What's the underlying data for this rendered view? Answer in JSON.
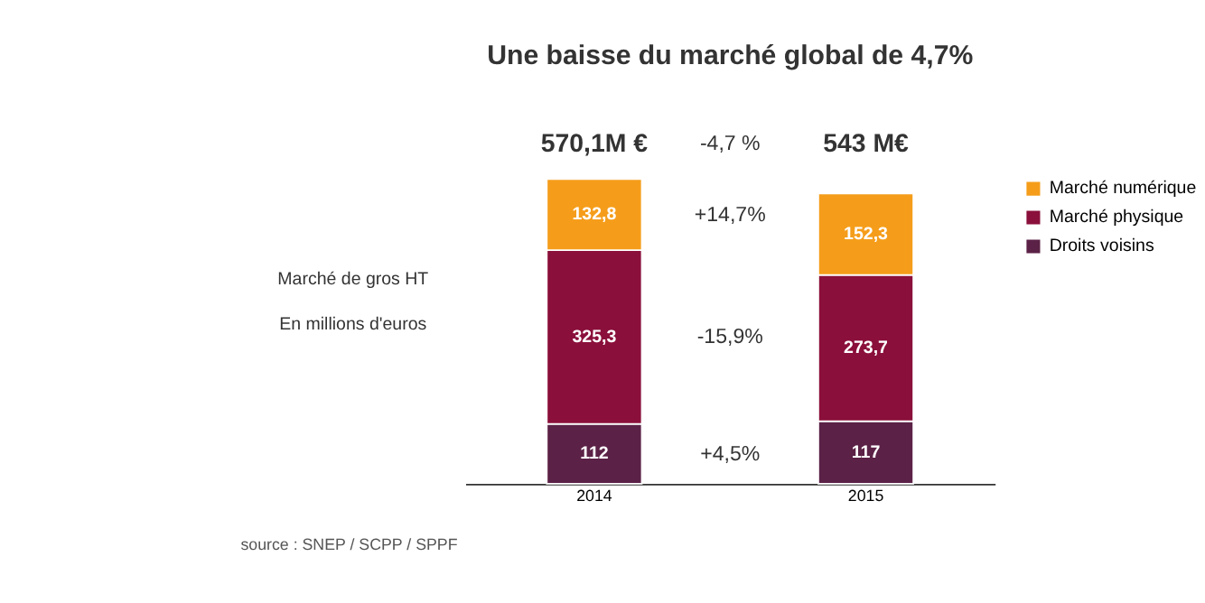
{
  "chart_data": {
    "type": "bar",
    "title": "Une baisse du marché global de 4,7%",
    "stacked": true,
    "categories": [
      "2014",
      "2015"
    ],
    "series": [
      {
        "name": "Droits voisins",
        "color": "#5b2146",
        "values": [
          112,
          117
        ],
        "value_labels": [
          "112",
          "117"
        ]
      },
      {
        "name": "Marché physique",
        "color": "#8a0f3a",
        "values": [
          325.3,
          273.7
        ],
        "value_labels": [
          "325,3",
          "273,7"
        ]
      },
      {
        "name": "Marché numérique",
        "color": "#f59d1a",
        "values": [
          132.8,
          152.3
        ],
        "value_labels": [
          "132,8",
          "152,3"
        ]
      }
    ],
    "totals": [
      "570,1M €",
      "543 M€"
    ],
    "annotations": [
      "-4,7 %",
      "+14,7%",
      "-15,9%",
      "+4,5%",
      "Marché de gros HT",
      "En millions d'euros",
      "source : SNEP / SCPP / SPPF"
    ],
    "legend": "right",
    "grid": false
  }
}
